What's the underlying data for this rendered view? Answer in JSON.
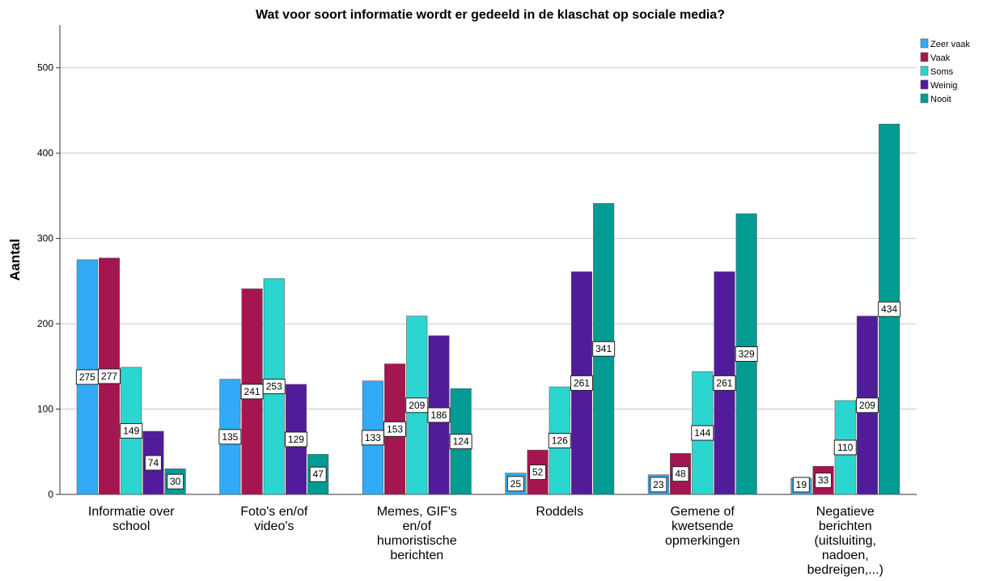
{
  "chart_data": {
    "type": "bar",
    "title": "Wat voor soort informatie wordt er gedeeld in de klaschat op sociale media?",
    "xlabel": "",
    "ylabel": "Aantal",
    "ylim": [
      0,
      550
    ],
    "yticks": [
      0,
      100,
      200,
      300,
      400,
      500
    ],
    "grid": true,
    "legend_position": "top-right",
    "categories": [
      [
        "Informatie over",
        "school"
      ],
      [
        "Foto's en/of",
        "video's"
      ],
      [
        "Memes, GIF's",
        "en/of",
        "humoristische",
        "berichten"
      ],
      [
        "Roddels"
      ],
      [
        "Gemene of",
        "kwetsende",
        "opmerkingen"
      ],
      [
        "Negatieve",
        "berichten",
        "(uitsluiting,",
        "nadoen,",
        "bedreigen,...)"
      ]
    ],
    "series": [
      {
        "name": "Zeer vaak",
        "color": "#33aaf5",
        "values": [
          275,
          135,
          133,
          25,
          23,
          19
        ]
      },
      {
        "name": "Vaak",
        "color": "#a5154f",
        "values": [
          277,
          241,
          153,
          52,
          48,
          33
        ]
      },
      {
        "name": "Soms",
        "color": "#2bd6d0",
        "values": [
          149,
          253,
          209,
          126,
          144,
          110
        ]
      },
      {
        "name": "Weinig",
        "color": "#511c9b",
        "values": [
          74,
          129,
          186,
          261,
          261,
          209
        ]
      },
      {
        "name": "Nooit",
        "color": "#009b93",
        "values": [
          30,
          47,
          124,
          341,
          329,
          434
        ]
      }
    ]
  }
}
